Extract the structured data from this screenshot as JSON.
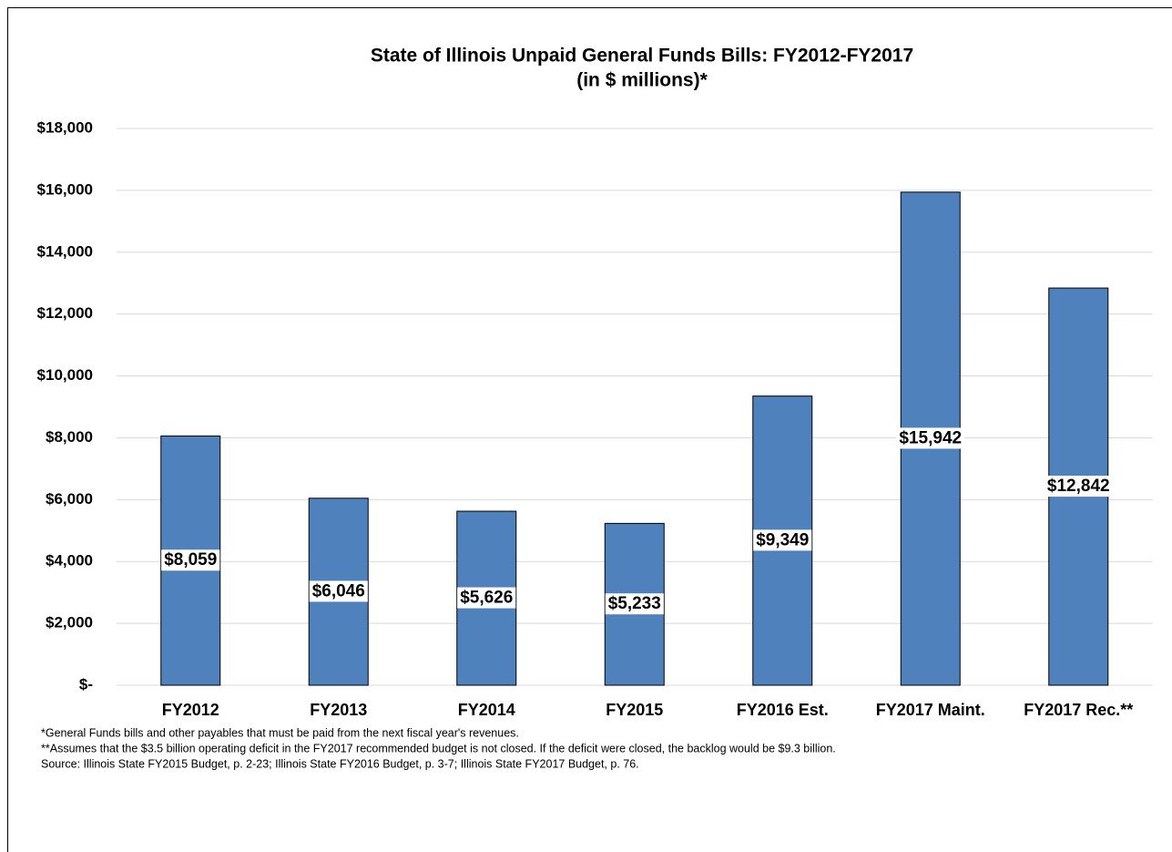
{
  "chart_data": {
    "type": "bar",
    "title": "State of Illinois Unpaid General Funds Bills: FY2012-FY2017",
    "subtitle": "(in $ millions)*",
    "categories": [
      "FY2012",
      "FY2013",
      "FY2014",
      "FY2015",
      "FY2016 Est.",
      "FY2017 Maint.",
      "FY2017 Rec.**"
    ],
    "values": [
      8059,
      6046,
      5626,
      5233,
      9349,
      15942,
      12842
    ],
    "value_labels": [
      "$8,059",
      "$6,046",
      "$5,626",
      "$5,233",
      "$9,349",
      "$15,942",
      "$12,842"
    ],
    "color": "#4f81bd",
    "ylim": [
      0,
      18000
    ],
    "yticks": [
      {
        "value": 0,
        "label": "$-"
      },
      {
        "value": 2000,
        "label": "$2,000"
      },
      {
        "value": 4000,
        "label": "$4,000"
      },
      {
        "value": 6000,
        "label": "$6,000"
      },
      {
        "value": 8000,
        "label": "$8,000"
      },
      {
        "value": 10000,
        "label": "$10,000"
      },
      {
        "value": 12000,
        "label": "$12,000"
      },
      {
        "value": 14000,
        "label": "$14,000"
      },
      {
        "value": 16000,
        "label": "$16,000"
      },
      {
        "value": 18000,
        "label": "$18,000"
      }
    ],
    "grid": true,
    "notes": [
      "*General Funds bills and other payables that must be paid from the next fiscal year's revenues.",
      "**Assumes that the $3.5 billion operating deficit in the FY2017 recommended budget is not closed. If the deficit were closed, the backlog would be $9.3 billion.",
      "Source: Illinois State FY2015 Budget, p. 2-23; Illinois State FY2016 Budget, p. 3-7; Illinois State FY2017 Budget, p. 76."
    ]
  }
}
